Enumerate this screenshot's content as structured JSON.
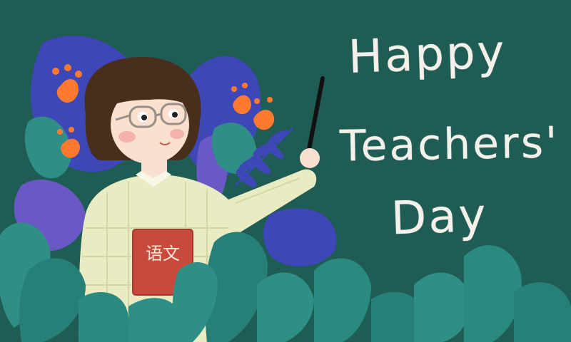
{
  "greeting": {
    "line1": "Happy",
    "line2": "Teachers'",
    "line3": "Day"
  },
  "book": {
    "label": "语文"
  },
  "colors": {
    "chalkboard": "#1f5c54",
    "chalk_text": "#f4f1ea",
    "foliage_teal": "#2f8f86",
    "foliage_blue": "#3e47b8",
    "foliage_purple": "#6a58c4",
    "flower_orange": "#ff7a2e",
    "book_red": "#c94a3d",
    "sweater": "#e9ecc3",
    "hair": "#4a2e1c"
  },
  "icons": {
    "teacher": "teacher-illustration-icon",
    "pointer": "pointer-stick-icon",
    "book": "book-icon"
  }
}
